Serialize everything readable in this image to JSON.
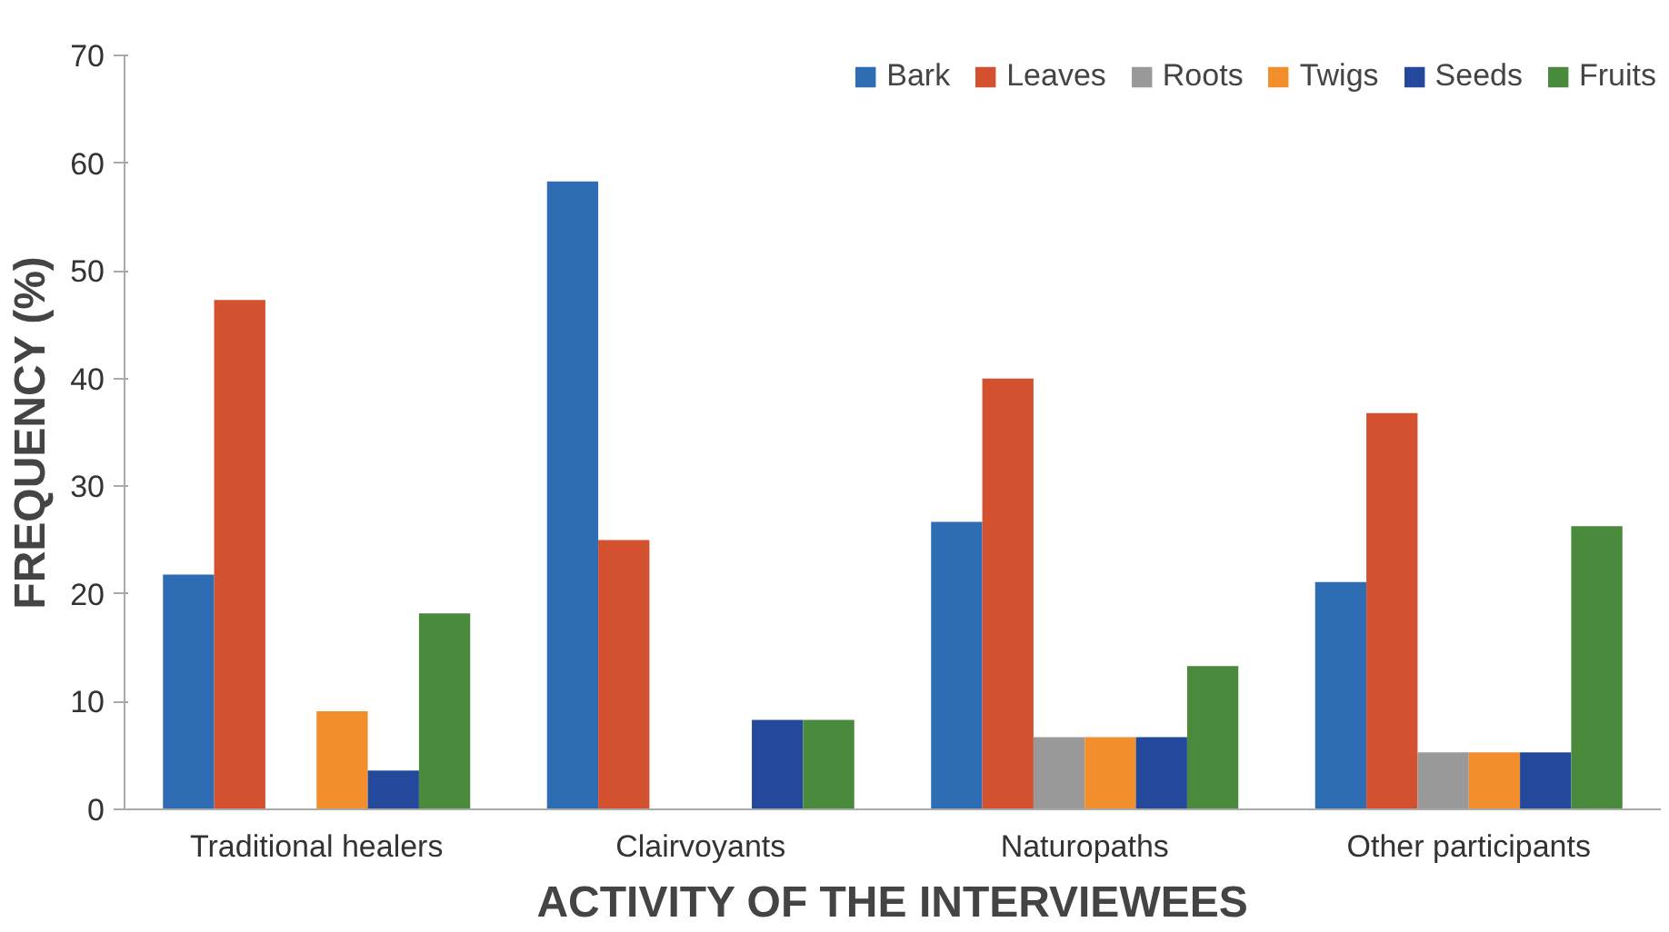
{
  "chart_data": {
    "type": "bar",
    "xlabel": "ACTIVITY OF THE INTERVIEWEES",
    "ylabel": "FREQUENCY (%)",
    "categories": [
      "Traditional healers",
      "Clairvoyants",
      "Naturopaths",
      "Other participants"
    ],
    "series": [
      {
        "name": "Bark",
        "color": "#2e6db4",
        "values": [
          21.8,
          58.3,
          26.7,
          21.1
        ]
      },
      {
        "name": "Leaves",
        "color": "#d45130",
        "values": [
          47.3,
          25.0,
          40.0,
          36.8
        ]
      },
      {
        "name": "Roots",
        "color": "#999999",
        "values": [
          0,
          0,
          6.7,
          5.3
        ]
      },
      {
        "name": "Twigs",
        "color": "#f28e2b",
        "values": [
          9.1,
          0,
          6.7,
          5.3
        ]
      },
      {
        "name": "Seeds",
        "color": "#24489c",
        "values": [
          3.6,
          8.3,
          6.7,
          5.3
        ]
      },
      {
        "name": "Fruits",
        "color": "#4a8a3c",
        "values": [
          18.2,
          8.3,
          13.3,
          26.3
        ]
      }
    ],
    "ylim": [
      0,
      70
    ],
    "yticks": [
      0,
      10,
      20,
      30,
      40,
      50,
      60,
      70
    ],
    "grid": false,
    "legend": "top right"
  }
}
